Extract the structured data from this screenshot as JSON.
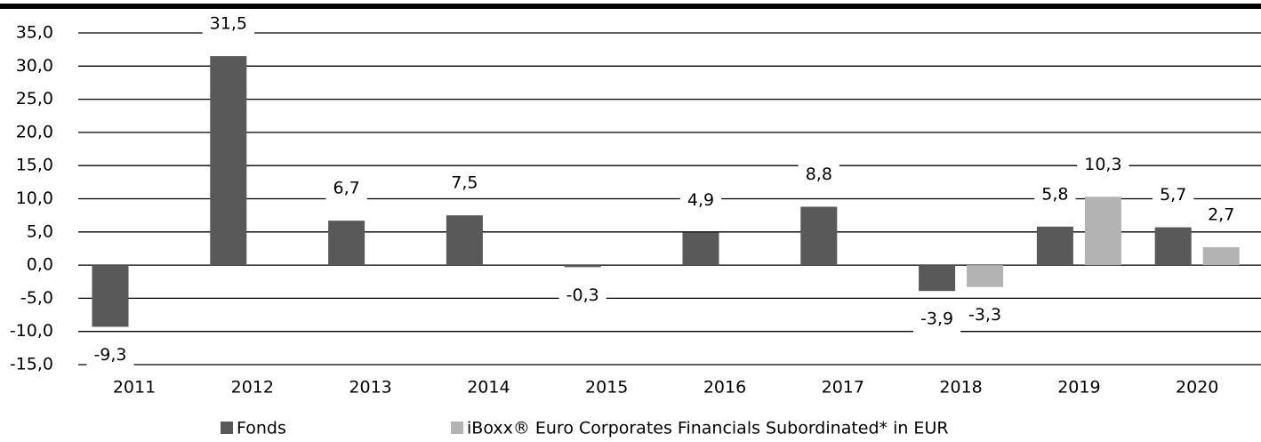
{
  "chart_data": {
    "type": "bar",
    "categories": [
      "2011",
      "2012",
      "2013",
      "2014",
      "2015",
      "2016",
      "2017",
      "2018",
      "2019",
      "2020"
    ],
    "series": [
      {
        "name": "Fonds",
        "color": "#595959",
        "values": [
          -9.3,
          31.5,
          6.7,
          7.5,
          -0.3,
          4.9,
          8.8,
          -3.9,
          5.8,
          5.7
        ],
        "value_labels": [
          "-9,3",
          "31,5",
          "6,7",
          "7,5",
          "-0,3",
          "4,9",
          "8,8",
          "-3,9",
          "5,8",
          "5,7"
        ]
      },
      {
        "name": "iBoxx® Euro Corporates Financials Subordinated* in EUR",
        "color": "#b3b3b3",
        "values": [
          null,
          null,
          null,
          null,
          null,
          null,
          null,
          -3.3,
          10.3,
          2.7
        ],
        "value_labels": [
          null,
          null,
          null,
          null,
          null,
          null,
          null,
          "-3,3",
          "10,3",
          "2,7"
        ]
      }
    ],
    "ylim": [
      -15,
      35
    ],
    "yticks": [
      {
        "value": -15,
        "label": "-15,0"
      },
      {
        "value": -10,
        "label": "-10,0"
      },
      {
        "value": -5,
        "label": "-5,0"
      },
      {
        "value": 0,
        "label": "0,0"
      },
      {
        "value": 5,
        "label": "5,0"
      },
      {
        "value": 10,
        "label": "10,0"
      },
      {
        "value": 15,
        "label": "15,0"
      },
      {
        "value": 20,
        "label": "20,0"
      },
      {
        "value": 25,
        "label": "25,0"
      },
      {
        "value": 30,
        "label": "30,0"
      },
      {
        "value": 35,
        "label": "35,0"
      }
    ],
    "grid": true,
    "legend": "bottom"
  }
}
